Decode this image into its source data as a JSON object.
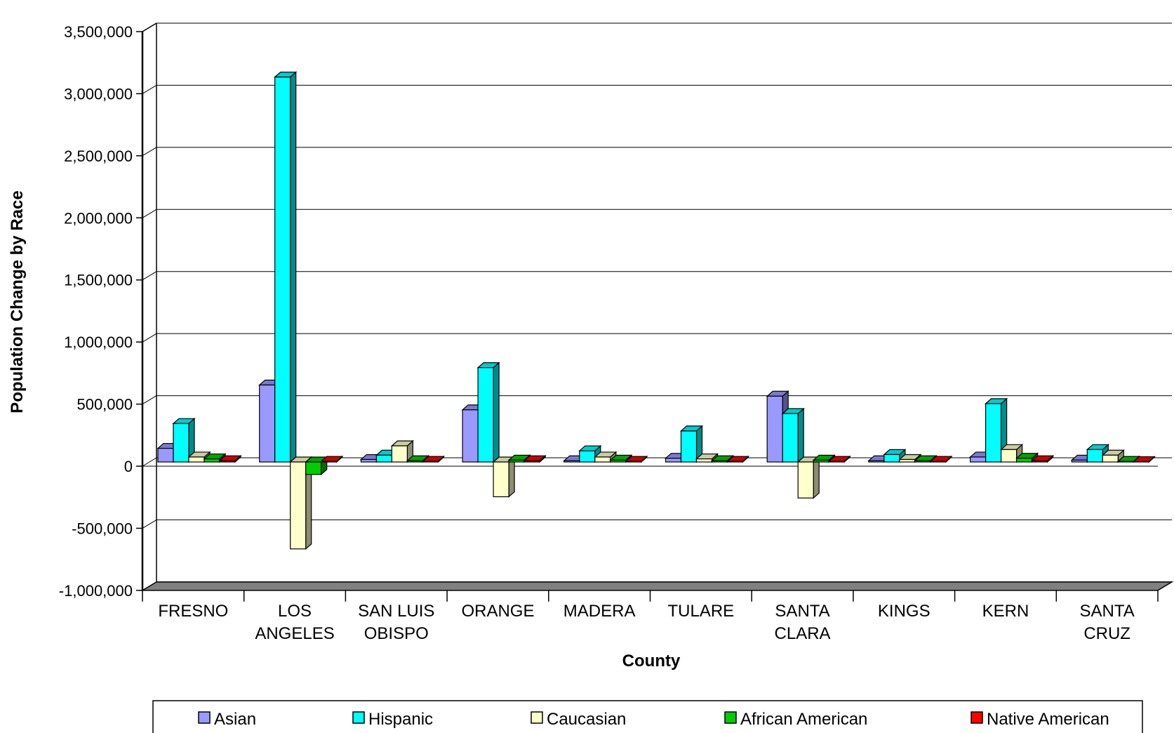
{
  "chart_data": {
    "type": "bar",
    "xlabel": "County",
    "ylabel": "Population Change by Race",
    "ylim": [
      -1000000,
      3500000
    ],
    "yticks": [
      -1000000,
      -500000,
      0,
      500000,
      1000000,
      1500000,
      2000000,
      2500000,
      3000000,
      3500000
    ],
    "ytick_labels": [
      "-1,000,000",
      "-500,000",
      "0",
      "500,000",
      "1,000,000",
      "1,500,000",
      "2,000,000",
      "2,500,000",
      "3,000,000",
      "3,500,000"
    ],
    "categories": [
      [
        "FRESNO"
      ],
      [
        "LOS",
        "ANGELES"
      ],
      [
        "SAN LUIS",
        "OBISPO"
      ],
      [
        "ORANGE"
      ],
      [
        "MADERA"
      ],
      [
        "TULARE"
      ],
      [
        "SANTA",
        "CLARA"
      ],
      [
        "KINGS"
      ],
      [
        "KERN"
      ],
      [
        "SANTA",
        "CRUZ"
      ]
    ],
    "grid": true,
    "legend_position": "bottom",
    "series": [
      {
        "name": "Asian",
        "color": "#9999ff",
        "values": [
          110000,
          620000,
          20000,
          420000,
          10000,
          30000,
          530000,
          10000,
          40000,
          15000
        ]
      },
      {
        "name": "Hispanic",
        "color": "#00ffff",
        "values": [
          310000,
          3100000,
          55000,
          760000,
          90000,
          250000,
          390000,
          60000,
          470000,
          100000
        ]
      },
      {
        "name": "Caucasian",
        "color": "#ffffcc",
        "values": [
          40000,
          -700000,
          130000,
          -280000,
          40000,
          25000,
          -290000,
          20000,
          100000,
          55000
        ]
      },
      {
        "name": "African American",
        "color": "#00cc00",
        "values": [
          25000,
          -100000,
          10000,
          15000,
          15000,
          10000,
          15000,
          10000,
          30000,
          5000
        ]
      },
      {
        "name": "Native American",
        "color": "#ff0000",
        "values": [
          10000,
          5000,
          5000,
          10000,
          5000,
          5000,
          5000,
          5000,
          10000,
          3000
        ]
      }
    ]
  }
}
